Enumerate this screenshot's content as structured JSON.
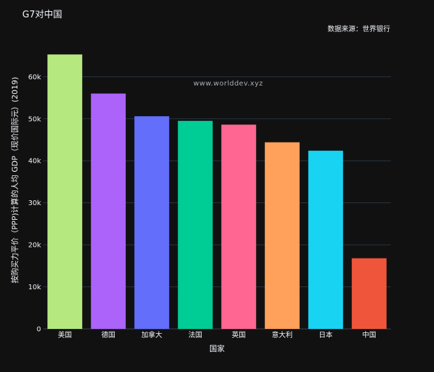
{
  "title": "G7对中国",
  "source": "数据来源：世界银行",
  "watermark": "www.worlddev.xyz",
  "chart_data": {
    "type": "bar",
    "title": "G7对中国",
    "xlabel": "国家",
    "ylabel": "按购买力平价（PPP)计算的人均 GDP（现价国际元）(2019)",
    "categories": [
      "美国",
      "德国",
      "加拿大",
      "法国",
      "英国",
      "意大利",
      "日本",
      "中国"
    ],
    "values": [
      65300,
      56000,
      50600,
      49500,
      48600,
      44400,
      42400,
      16800
    ],
    "colors": [
      "#b6e880",
      "#ab63fa",
      "#636efa",
      "#00cc96",
      "#ff6692",
      "#ffa15a",
      "#19d3f3",
      "#ef553b"
    ],
    "ylim": [
      0,
      68000
    ],
    "yticks": [
      0,
      10000,
      20000,
      30000,
      40000,
      50000,
      60000
    ],
    "ytick_labels": [
      "0",
      "10k",
      "20k",
      "30k",
      "40k",
      "50k",
      "60k"
    ],
    "grid": true,
    "legend": "none"
  }
}
